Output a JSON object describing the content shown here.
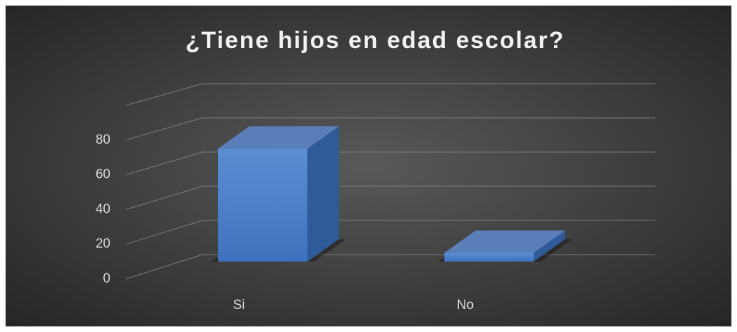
{
  "chart_data": {
    "type": "bar3d",
    "title": "¿Tiene hijos en edad escolar?",
    "categories": [
      "Si",
      "No"
    ],
    "values": [
      65,
      5
    ],
    "color": "#4a7cc4",
    "ylim": [
      0,
      100
    ],
    "yticks": [
      0,
      20,
      40,
      60,
      80
    ],
    "grid": true
  }
}
